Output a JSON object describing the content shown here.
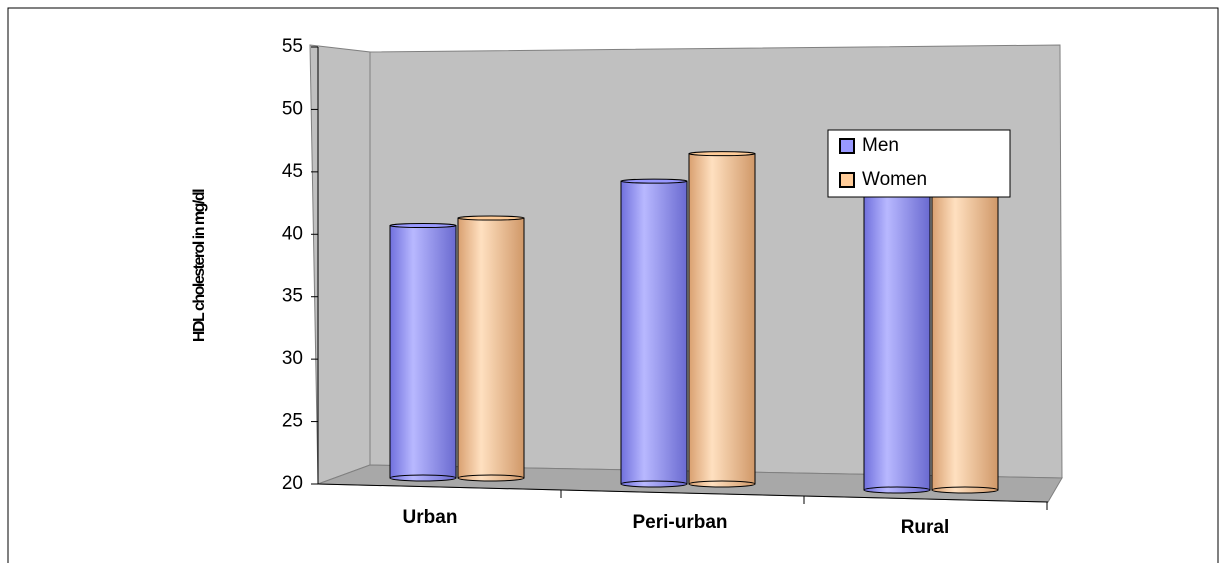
{
  "chart_data": {
    "type": "bar",
    "y_label": "HDL cholesterol in mg/dl",
    "categories": [
      "Urban",
      "Peri-urban",
      "Rural"
    ],
    "series": [
      {
        "name": "Men",
        "color": "#9999ff",
        "values": [
          40.7,
          44.4,
          45
        ]
      },
      {
        "name": "Women",
        "color": "#ffcc99",
        "values": [
          41.3,
          46.6,
          45.5
        ]
      }
    ],
    "ylim": [
      20,
      55
    ],
    "yticks": [
      20,
      25,
      30,
      35,
      40,
      45,
      50,
      55
    ],
    "legend": "upper right"
  }
}
